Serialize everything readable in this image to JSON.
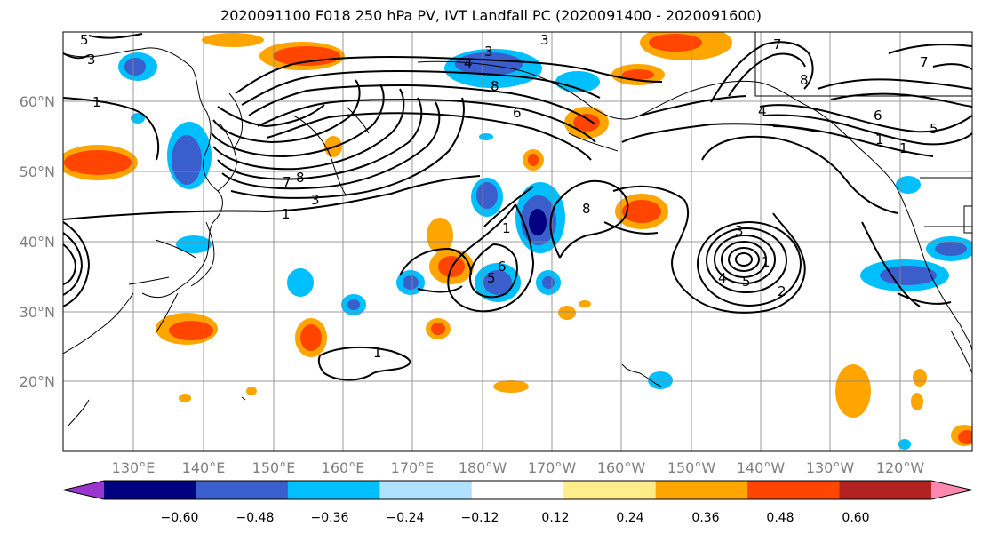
{
  "title": "2020091100 F018 250 hPa PV, IVT Landfall PC (2020091400 - 2020091600)",
  "lon_ticks": [
    "130°E",
    "140°E",
    "150°E",
    "160°E",
    "170°E",
    "180°W",
    "170°W",
    "160°W",
    "150°W",
    "140°W",
    "130°W",
    "120°W"
  ],
  "lat_ticks": [
    "60°N",
    "50°N",
    "40°N",
    "30°N",
    "20°N"
  ],
  "colorbar": {
    "colors": [
      "#9a35cf",
      "#000080",
      "#3a5fcd",
      "#00bfff",
      "#b0e2ff",
      "#ffffff",
      "#ffec8b",
      "#ffa500",
      "#ff4500",
      "#b22222",
      "#ff88b0"
    ],
    "labels": [
      "−0.60",
      "−0.48",
      "−0.36",
      "−0.24",
      "−0.12",
      "0.12",
      "0.24",
      "0.36",
      "0.48",
      "0.60"
    ]
  },
  "contour_labels": [
    "5",
    "3",
    "1",
    "3",
    "3",
    "4",
    "8",
    "6",
    "7",
    "8",
    "3",
    "1",
    "1",
    "8",
    "6",
    "5",
    "1",
    "7",
    "4",
    "8",
    "6",
    "5",
    "1",
    "3",
    "1",
    "4",
    "5",
    "2",
    "1",
    "7"
  ],
  "anomaly_colors": {
    "negative_strong": "#000080",
    "negative_mid": "#3a5fcd",
    "negative_light": "#00bfff",
    "positive_light": "#ffa500",
    "positive_strong": "#ff4500"
  }
}
